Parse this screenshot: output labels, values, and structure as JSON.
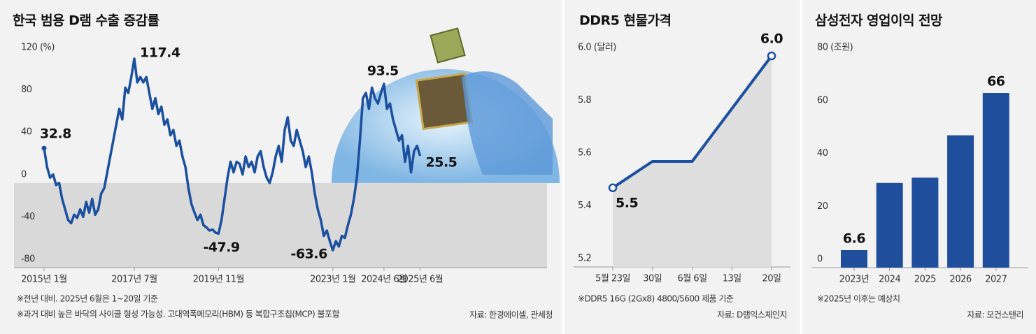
{
  "chart_data": [
    {
      "type": "line",
      "title": "한국 범용 D램 수출 증감률",
      "categories": [
        "2015년 1월",
        null,
        null,
        null,
        null,
        null,
        null,
        null,
        null,
        null,
        null,
        null,
        null,
        null,
        null,
        null,
        null,
        null,
        null,
        null,
        null,
        null,
        null,
        null,
        null,
        null,
        null,
        null,
        null,
        null,
        "2017년 7월",
        null,
        null,
        null,
        null,
        null,
        null,
        null,
        null,
        null,
        null,
        null,
        null,
        null,
        null,
        null,
        null,
        null,
        null,
        null,
        null,
        null,
        null,
        null,
        null,
        null,
        null,
        null,
        "2019년 11월",
        null,
        null,
        null,
        null,
        null,
        null,
        null,
        null,
        null,
        null,
        null,
        null,
        null,
        null,
        null,
        null,
        null,
        null,
        null,
        null,
        null,
        null,
        null,
        null,
        null,
        null,
        null,
        null,
        null,
        null,
        null,
        null,
        null,
        null,
        null,
        null,
        null,
        "2023년 1월",
        null,
        null,
        null,
        null,
        null,
        null,
        null,
        null,
        null,
        null,
        null,
        null,
        null,
        null,
        null,
        null,
        "2024년 6월",
        null,
        null,
        null,
        null,
        null,
        null,
        null,
        null,
        null,
        null,
        null,
        "2025년 6월"
      ],
      "series": [
        {
          "color": "#1b4f9f",
          "values": [
            32.8,
            15,
            5,
            8,
            -2,
            0,
            -15,
            -25,
            -35,
            -38,
            -30,
            -33,
            -25,
            -32,
            -18,
            -28,
            -15,
            -30,
            -25,
            -10,
            -5,
            10,
            25,
            40,
            55,
            70,
            60,
            90,
            85,
            100,
            117.4,
            95,
            100,
            95,
            100,
            85,
            70,
            80,
            65,
            72,
            55,
            60,
            45,
            50,
            35,
            40,
            25,
            15,
            -5,
            -20,
            -28,
            -35,
            -30,
            -40,
            -42,
            -45,
            -44,
            -47,
            -47.9,
            -35,
            -15,
            5,
            20,
            10,
            20,
            18,
            8,
            25,
            15,
            20,
            10,
            25,
            30,
            15,
            5,
            0,
            10,
            25,
            35,
            20,
            50,
            62,
            40,
            35,
            50,
            40,
            30,
            15,
            25,
            10,
            -10,
            -25,
            -35,
            -50,
            -45,
            -55,
            -63.6,
            -55,
            -60,
            -50,
            -52,
            -40,
            -30,
            -15,
            5,
            40,
            80,
            85,
            70,
            90,
            80,
            75,
            85,
            93.5,
            70,
            75,
            60,
            50,
            40,
            45,
            20,
            35,
            10,
            30,
            35,
            25.5
          ],
          "value_labels": [
            "32.8",
            null,
            null,
            null,
            null,
            null,
            null,
            null,
            null,
            null,
            null,
            null,
            null,
            null,
            null,
            null,
            null,
            null,
            null,
            null,
            null,
            null,
            null,
            null,
            null,
            null,
            null,
            null,
            null,
            null,
            "117.4",
            null,
            null,
            null,
            null,
            null,
            null,
            null,
            null,
            null,
            null,
            null,
            null,
            null,
            null,
            null,
            null,
            null,
            null,
            null,
            null,
            null,
            null,
            null,
            null,
            null,
            null,
            null,
            "-47.9",
            null,
            null,
            null,
            null,
            null,
            null,
            null,
            null,
            null,
            null,
            null,
            null,
            null,
            null,
            null,
            null,
            null,
            null,
            null,
            null,
            null,
            null,
            null,
            null,
            null,
            null,
            null,
            null,
            null,
            null,
            null,
            null,
            null,
            null,
            null,
            null,
            null,
            "-63.6",
            null,
            null,
            null,
            null,
            null,
            null,
            null,
            null,
            null,
            null,
            null,
            null,
            null,
            null,
            null,
            null,
            "93.5",
            null,
            null,
            null,
            null,
            null,
            null,
            null,
            null,
            null,
            null,
            null,
            "25.5"
          ]
        }
      ],
      "ylim": [
        -80,
        120
      ],
      "yticks": [
        {
          "value": 120,
          "label": "120 (%)"
        },
        80,
        40,
        0,
        -40,
        -80
      ],
      "notes": [
        "※전년 대비. 2025년 6월은 1~20일 기준",
        "※과거 대비 높은 바닥의 사이클 형성 가능성. 고대역폭메모리(HBM) 등 복합구조칩(MCP) 불포함"
      ],
      "source": "자료: 한경에이셀, 관세청"
    },
    {
      "type": "area",
      "title": "DDR5 현물가격",
      "categories": [
        "5월 23일",
        "30일",
        "6월 6일",
        "13일",
        "20일"
      ],
      "series": [
        {
          "color": "#1b4f9f",
          "values": [
            5.5,
            5.6,
            5.6,
            5.8,
            6.0
          ],
          "value_labels": [
            "5.5",
            null,
            null,
            null,
            "6.0"
          ]
        }
      ],
      "ylim": [
        5.2,
        6.0
      ],
      "yticks": [
        {
          "value": 6.0,
          "label": "6.0 (달러)"
        },
        5.8,
        5.6,
        5.4,
        5.2
      ],
      "notes": [
        "※DDR5 16G (2Gx8) 4800/5600 제품 기준"
      ],
      "source": "자료: D램익스체인지"
    },
    {
      "type": "bar",
      "title": "삼성전자 영업이익 전망",
      "categories": [
        "2023년",
        "2024",
        "2025",
        "2026",
        "2027"
      ],
      "series": [
        {
          "color": "#1f4e9c",
          "values": [
            6.6,
            32,
            34,
            50,
            66
          ],
          "value_labels": [
            "6.6",
            null,
            null,
            null,
            "66"
          ]
        }
      ],
      "ylim": [
        0,
        80
      ],
      "yticks": [
        {
          "value": 80,
          "label": "80 (조원)"
        },
        60,
        40,
        20,
        0
      ],
      "notes": [
        "※2025년 이후는 예상치"
      ],
      "source": "자료: 모건스탠리"
    }
  ]
}
